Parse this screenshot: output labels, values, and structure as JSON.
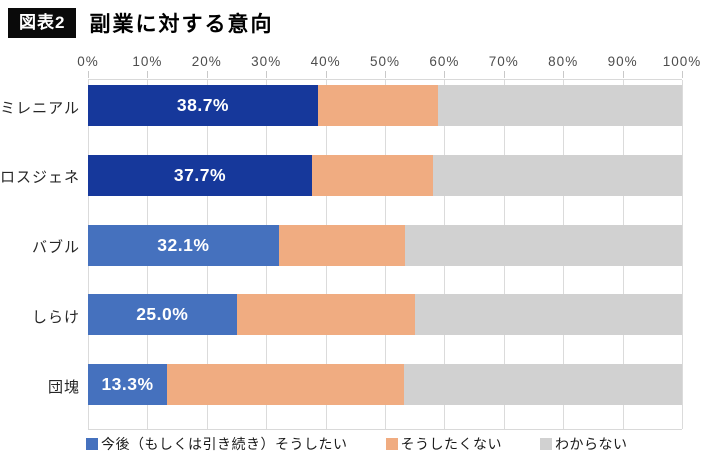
{
  "header": {
    "figure_label": "図表2",
    "title": "副業に対する意向"
  },
  "chart_data": {
    "type": "bar",
    "orientation": "horizontal",
    "stacked": true,
    "title": "副業に対する意向",
    "categories": [
      "ミレニアル",
      "ロスジェネ",
      "バブル",
      "しらけ",
      "団塊"
    ],
    "series": [
      {
        "name": "今後（もしくは引き続き）そうしたい",
        "values": [
          38.7,
          37.7,
          32.1,
          25.0,
          13.3
        ],
        "data_labels": [
          "38.7%",
          "37.7%",
          "32.1%",
          "25.0%",
          "13.3%"
        ],
        "bar_colors": [
          "#16389b",
          "#16389b",
          "#4571be",
          "#4571be",
          "#4571be"
        ],
        "legend_color": "#4571be"
      },
      {
        "name": "そうしたくない",
        "values": [
          20.2,
          20.4,
          21.2,
          30.0,
          39.9
        ],
        "data_labels": [
          "",
          "",
          "",
          "",
          ""
        ],
        "bar_colors": [
          "#f0ac81",
          "#f0ac81",
          "#f0ac81",
          "#f0ac81",
          "#f0ac81"
        ],
        "legend_color": "#f0ac81"
      },
      {
        "name": "わからない",
        "values": [
          41.1,
          41.9,
          46.7,
          45.0,
          46.8
        ],
        "data_labels": [
          "",
          "",
          "",
          "",
          ""
        ],
        "bar_colors": [
          "#d1d1d1",
          "#d1d1d1",
          "#d1d1d1",
          "#d1d1d1",
          "#d1d1d1"
        ],
        "legend_color": "#d1d1d1"
      }
    ],
    "xlim": [
      0,
      100
    ],
    "x_ticks": [
      "0%",
      "10%",
      "20%",
      "30%",
      "40%",
      "50%",
      "60%",
      "70%",
      "80%",
      "90%",
      "100%"
    ],
    "grid": true,
    "legend_position": "bottom",
    "label_text_color": "#ffffff",
    "gridline_color": "#dbdbdb"
  }
}
